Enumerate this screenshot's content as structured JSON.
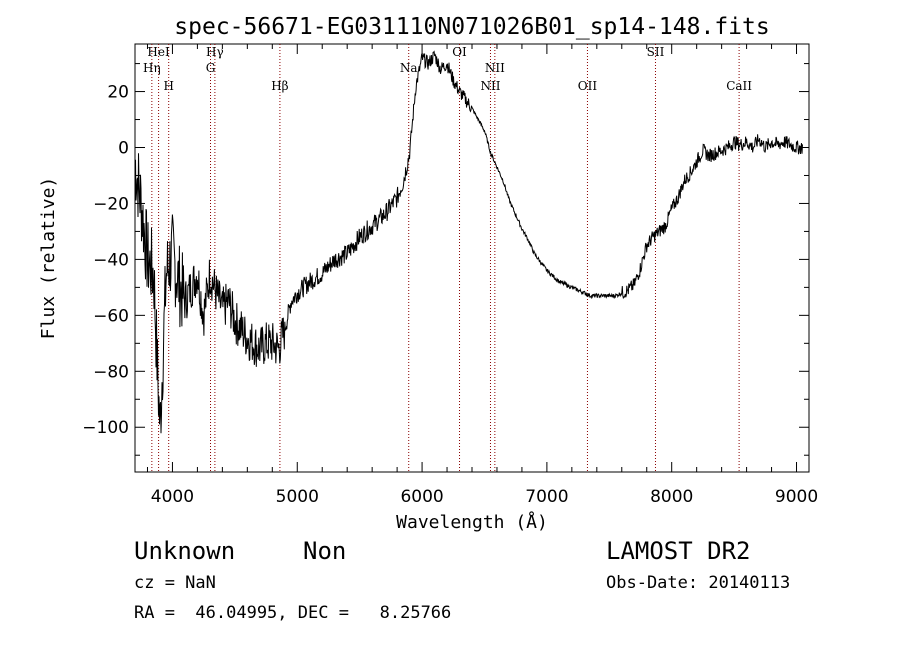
{
  "chart_data": {
    "type": "line",
    "title": "spec-56671-EG031110N071026B01_sp14-148.fits",
    "xlabel": "Wavelength (Å)",
    "ylabel": "Flux (relative)",
    "xlim": [
      3700,
      9100
    ],
    "ylim": [
      -116,
      37
    ],
    "xticks": [
      4000,
      5000,
      6000,
      7000,
      8000,
      9000
    ],
    "yticks": [
      -100,
      -80,
      -60,
      -40,
      -20,
      0,
      20
    ],
    "grid": false,
    "series": [
      {
        "x": [
          3700,
          3750,
          3800,
          3850,
          3880,
          3900,
          3950,
          4000,
          4050,
          4100,
          4150,
          4200,
          4250,
          4300,
          4350,
          4400,
          4450,
          4500,
          4550,
          4600,
          4650,
          4700,
          4750,
          4800,
          4850,
          4900,
          4950,
          5000,
          5100,
          5200,
          5300,
          5400,
          5500,
          5600,
          5700,
          5800,
          5850,
          5900,
          5925,
          5950,
          6000,
          6050,
          6100,
          6150,
          6200,
          6250,
          6300,
          6350,
          6400,
          6450,
          6500,
          6550,
          6600,
          6650,
          6700,
          6750,
          6800,
          6850,
          6900,
          6950,
          7000,
          7050,
          7100,
          7150,
          7200,
          7250,
          7300,
          7350,
          7400,
          7450,
          7500,
          7550,
          7600,
          7650,
          7700,
          7750,
          7800,
          7850,
          7900,
          7950,
          8000,
          8050,
          8100,
          8150,
          8200,
          8250,
          8300,
          8350,
          8400,
          8450,
          8500,
          8550,
          8600,
          8650,
          8700,
          8750,
          8800,
          8850,
          8900,
          8950,
          9000
        ],
        "y": [
          -5,
          -20,
          -40,
          -45,
          -80,
          -100,
          -45,
          -38,
          -48,
          -55,
          -50,
          -45,
          -60,
          -45,
          -52,
          -58,
          -55,
          -62,
          -65,
          -68,
          -70,
          -72,
          -70,
          -70,
          -72,
          -65,
          -55,
          -52,
          -48,
          -45,
          -40,
          -38,
          -32,
          -28,
          -24,
          -18,
          -12,
          -2,
          10,
          22,
          32,
          30,
          33,
          28,
          30,
          24,
          20,
          17,
          14,
          10,
          6,
          -2,
          -7,
          -12,
          -19,
          -24,
          -29,
          -33,
          -38,
          -41,
          -44,
          -46,
          -48,
          -49,
          -50,
          -51,
          -52,
          -53,
          -53,
          -53,
          -53,
          -53,
          -52,
          -51,
          -49,
          -43,
          -35,
          -32,
          -30,
          -28,
          -22,
          -18,
          -12,
          -9,
          -5,
          -1,
          -3,
          -2,
          -1,
          0,
          2,
          1,
          2,
          0,
          3,
          0,
          2,
          1,
          2,
          1,
          0
        ]
      }
    ],
    "lines": [
      {
        "label": "Hη",
        "x": 3835
      },
      {
        "label": "HeI",
        "x": 3889
      },
      {
        "label": "H",
        "x": 3970
      },
      {
        "label": "Hγ",
        "x": 4340
      },
      {
        "label": "G",
        "x": 4305
      },
      {
        "label": "Hβ",
        "x": 4861
      },
      {
        "label": "Na",
        "x": 5893
      },
      {
        "label": "OI",
        "x": 6300
      },
      {
        "label": "NII",
        "x": 6583
      },
      {
        "label": "NII",
        "x": 6548
      },
      {
        "label": "OII",
        "x": 7325
      },
      {
        "label": "SII",
        "x": 7870
      },
      {
        "label": "CaII",
        "x": 8540
      }
    ]
  },
  "info": {
    "object_class": "Unknown",
    "object_subclass": "Non",
    "survey": "LAMOST DR2",
    "redshift": "cz = NaN",
    "obs_date": "Obs-Date: 20140113",
    "coords": "RA =  46.04995, DEC =   8.25766"
  }
}
